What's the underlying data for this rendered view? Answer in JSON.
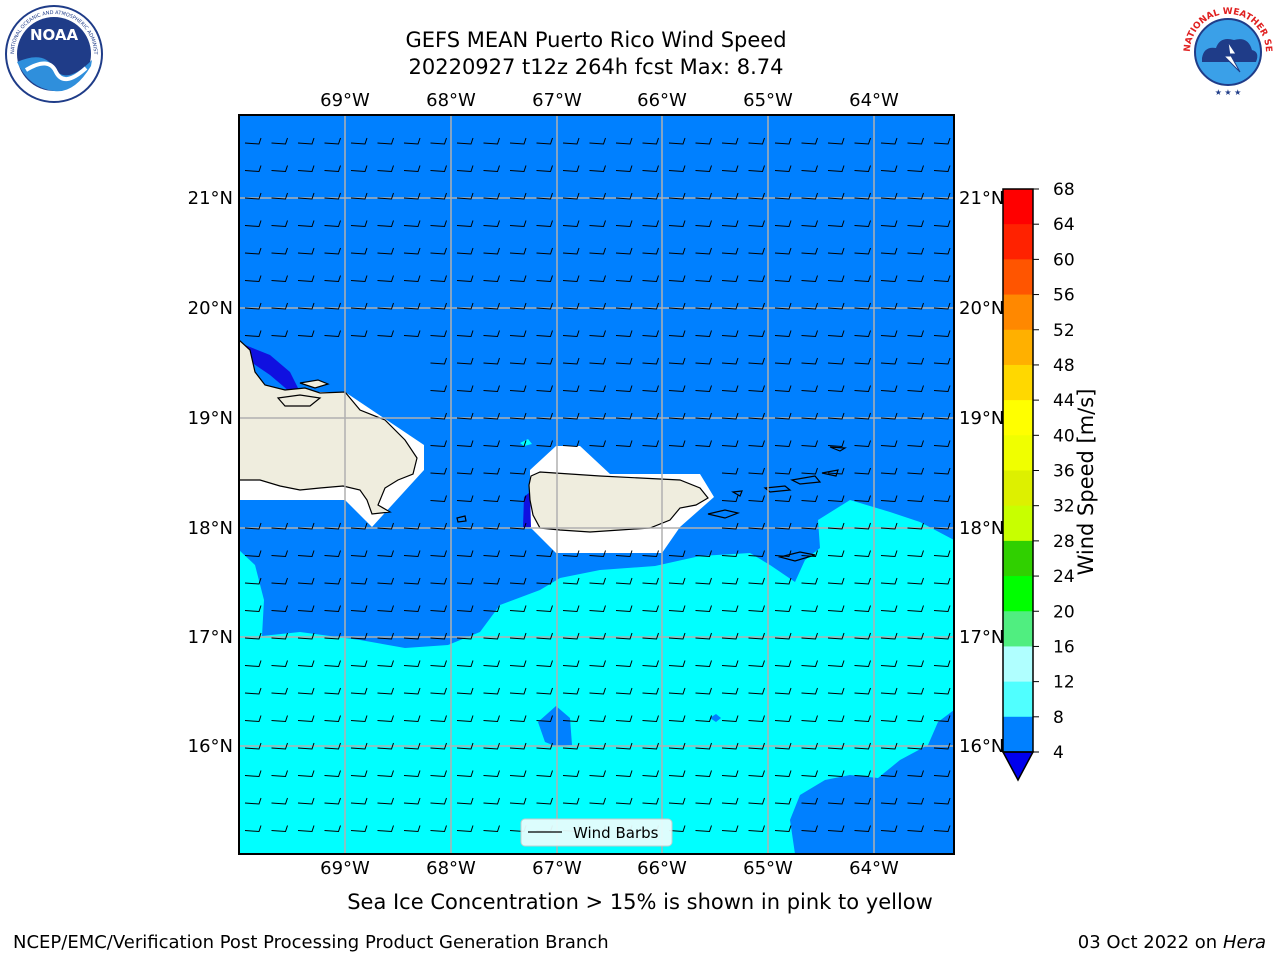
{
  "title": {
    "line1": "GEFS MEAN Puerto Rico Wind Speed",
    "line2": "20220927 t12z 264h fcst   Max: 8.74"
  },
  "logos": {
    "noaa": {
      "icon": "noaa-logo",
      "text": "NOAA",
      "ring_text": "NATIONAL OCEANIC AND ATMOSPHERIC ADMINISTRATION · U.S. DEPARTMENT OF COMMERCE"
    },
    "nws": {
      "icon": "nws-logo",
      "ring_text": "NATIONAL WEATHER SERVICE"
    }
  },
  "map": {
    "lon_ticks": [
      "69°W",
      "68°W",
      "67°W",
      "66°W",
      "65°W",
      "64°W"
    ],
    "lat_ticks": [
      "21°N",
      "20°N",
      "19°N",
      "18°N",
      "17°N",
      "16°N"
    ],
    "legend_label": "Wind Barbs",
    "colors": {
      "land": "#efedde",
      "band_4_8": "#0080ff",
      "band_8_12": "#00ffff",
      "band_lt4": "#1010e0"
    }
  },
  "colorbar": {
    "label": "Wind Speed [m/s]",
    "ticks": [
      "68",
      "64",
      "60",
      "56",
      "52",
      "48",
      "44",
      "40",
      "36",
      "32",
      "28",
      "24",
      "20",
      "16",
      "12",
      "8",
      "4"
    ],
    "colors": [
      "#ff0000",
      "#ff2200",
      "#ff5500",
      "#ff8800",
      "#ffb000",
      "#ffd800",
      "#ffff00",
      "#f0ff00",
      "#ddf000",
      "#c8ff00",
      "#30d000",
      "#00ff00",
      "#50ee80",
      "#b0ffff",
      "#50ffff",
      "#00ffff",
      "#0080ff"
    ],
    "extend_color": "#0000ee"
  },
  "bottom_note": "Sea Ice Concentration > 15% is shown in pink to yellow",
  "footer": {
    "left": "NCEP/EMC/Verification Post Processing Product Generation Branch",
    "right_prefix": "03 Oct 2022 on ",
    "right_host": "Hera"
  }
}
